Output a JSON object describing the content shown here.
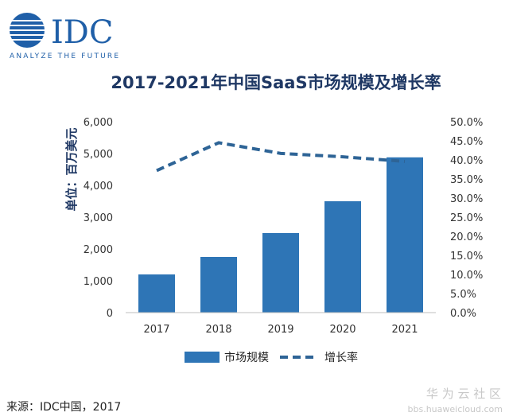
{
  "logo": {
    "brand": "IDC",
    "tagline": "ANALYZE THE FUTURE",
    "color": "#1f5fa8"
  },
  "chart_data": {
    "type": "bar",
    "title": "2017-2021年中国SaaS市场规模及增长率",
    "ylabel": "单位：百万美元",
    "categories": [
      "2017",
      "2018",
      "2019",
      "2020",
      "2021"
    ],
    "ylim": [
      0,
      6000
    ],
    "yticks": [
      "0",
      "1,000",
      "2,000",
      "3,000",
      "4,000",
      "5,000",
      "6,000"
    ],
    "y2lim": [
      0,
      50
    ],
    "y2ticks": [
      "0.0%",
      "5.0%",
      "10.0%",
      "15.0%",
      "20.0%",
      "25.0%",
      "30.0%",
      "35.0%",
      "40.0%",
      "45.0%",
      "50.0%"
    ],
    "series": [
      {
        "name": "市场规模",
        "kind": "bar",
        "axis": "left",
        "values": [
          1200,
          1750,
          2500,
          3500,
          4880
        ],
        "color": "#2e75b6"
      },
      {
        "name": "增长率",
        "kind": "line-dashed",
        "axis": "right",
        "values": [
          37.2,
          44.5,
          41.7,
          40.8,
          39.6
        ],
        "color": "#2e6496"
      }
    ],
    "legend_position": "bottom",
    "grid": false
  },
  "source": "来源：IDC中国，2017",
  "watermark": {
    "main": "华 为 云 社 区",
    "sub": "bbs.huaweicloud.com"
  }
}
